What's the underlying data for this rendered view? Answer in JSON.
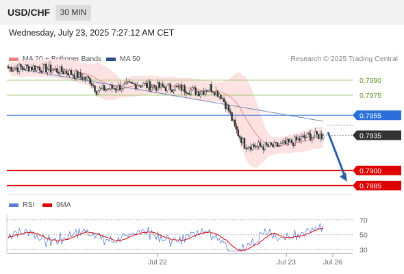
{
  "header": {
    "symbol": "USD/CHF",
    "timeframe": "30 MIN"
  },
  "datetime": "Wednesday, July 23, 2025 7:27:12 AM CET",
  "legend": {
    "items": [
      {
        "label": "MA 20 + Bollinger Bands",
        "color": "#f08080"
      },
      {
        "label": "MA 50",
        "color": "#2c4f8c"
      }
    ],
    "credit": "Research © 2025 Trading Central"
  },
  "rsi_legend": {
    "items": [
      {
        "label": "RSI",
        "color": "#5a7fd6"
      },
      {
        "label": "9MA",
        "color": "#dd0000"
      }
    ]
  },
  "chart_data": [
    {
      "type": "candlestick",
      "name": "price",
      "ylim": [
        0.7876,
        0.8005
      ],
      "x_tick_labels": [
        "Jul 22",
        "Jul 23",
        "Jul 26"
      ],
      "levels": [
        {
          "value": 0.799,
          "label": "0.7990",
          "role": "resistance",
          "color": "#8fbf5a"
        },
        {
          "value": 0.7975,
          "label": "0.7975",
          "role": "resistance",
          "color": "#8fbf5a"
        },
        {
          "value": 0.7955,
          "label": "0.7955",
          "role": "pivot",
          "color": "#2a6fdb"
        },
        {
          "value": 0.7935,
          "label": "0.7935",
          "role": "last",
          "color": "#333333"
        },
        {
          "value": 0.79,
          "label": "0.7900",
          "role": "target",
          "color": "#dd0000"
        },
        {
          "value": 0.7885,
          "label": "0.7885",
          "role": "target",
          "color": "#dd0000"
        }
      ],
      "forecast_arrow": {
        "from": 0.7938,
        "to": 0.7889,
        "color": "#2a5ea8"
      }
    },
    {
      "type": "line",
      "name": "rsi",
      "ylim": [
        25,
        78
      ],
      "y_tick_labels": [
        "70",
        "50",
        "30"
      ],
      "levels": [
        70,
        50,
        30
      ]
    }
  ]
}
